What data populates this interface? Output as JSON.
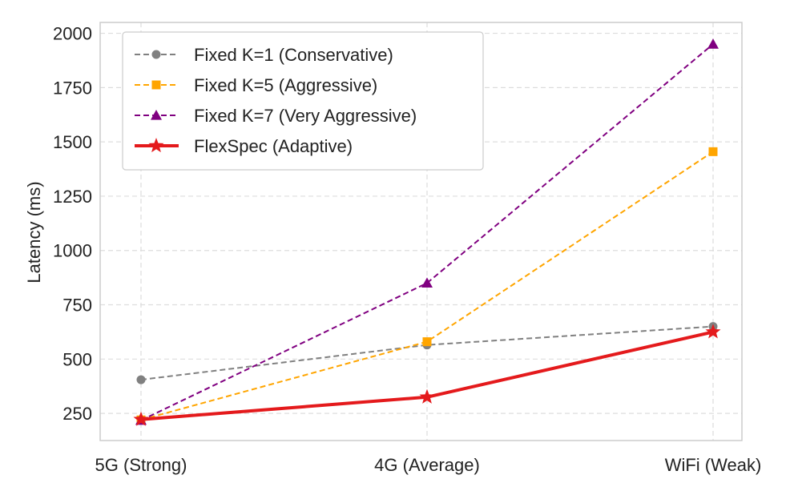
{
  "chart_data": {
    "type": "line",
    "title": "",
    "xlabel": "",
    "ylabel": "Latency (ms)",
    "categories": [
      "5G (Strong)",
      "4G (Average)",
      "WiFi (Weak)"
    ],
    "ylim": [
      125,
      2050
    ],
    "yticks": [
      250,
      500,
      750,
      1000,
      1250,
      1500,
      1750,
      2000
    ],
    "grid": true,
    "legend_position": "top-left",
    "series": [
      {
        "name": "Fixed K=1 (Conservative)",
        "values": [
          405,
          565,
          650
        ],
        "color": "#808080",
        "marker": "circle",
        "line_style": "dashed"
      },
      {
        "name": "Fixed K=5 (Aggressive)",
        "values": [
          220,
          580,
          1455
        ],
        "color": "#ffa500",
        "marker": "square",
        "line_style": "dashed"
      },
      {
        "name": "Fixed K=7 (Very Aggressive)",
        "values": [
          218,
          850,
          1950
        ],
        "color": "#800080",
        "marker": "triangle",
        "line_style": "dashed"
      },
      {
        "name": "FlexSpec (Adaptive)",
        "values": [
          222,
          325,
          625
        ],
        "color": "#e41a1c",
        "marker": "star",
        "line_style": "solid"
      }
    ]
  }
}
